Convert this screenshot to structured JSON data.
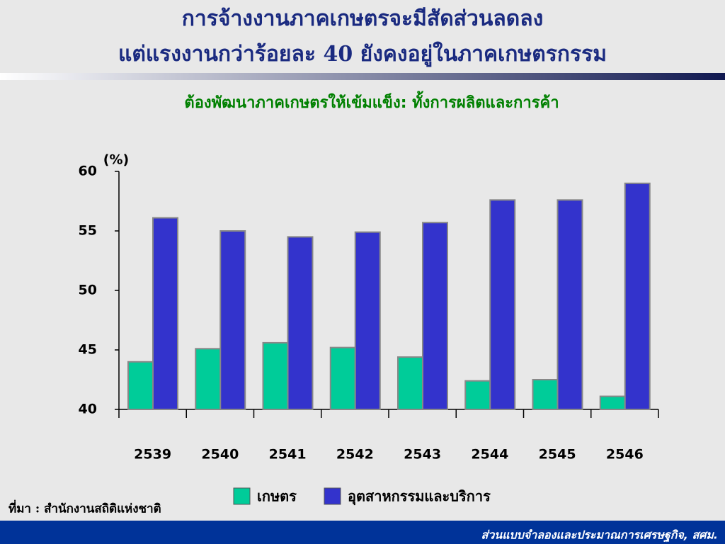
{
  "chart_data": {
    "type": "bar",
    "title": "การจ้างงานภาคเกษตรจะมีสัดส่วนลดลง",
    "title_line2": "แต่แรงงานกว่าร้อยละ 40 ยังคงอยู่ในภาคเกษตรกรรม",
    "subtitle": "ต้องพัฒนาภาคเกษตรให้เข้มแข็ง: ทั้งการผลิตและการค้า",
    "y_unit_label": "(%)",
    "categories": [
      "2539",
      "2540",
      "2541",
      "2542",
      "2543",
      "2544",
      "2545",
      "2546"
    ],
    "series": [
      {
        "name": "เกษตร",
        "color": "#00cc99",
        "values": [
          44.0,
          45.1,
          45.6,
          45.2,
          44.4,
          42.4,
          42.5,
          41.1
        ]
      },
      {
        "name": "อุตสาหกรรมและบริการ",
        "color": "#3333cc",
        "values": [
          56.1,
          55.0,
          54.5,
          54.9,
          55.7,
          57.6,
          57.6,
          59.0
        ]
      }
    ],
    "ylim": [
      40,
      60
    ],
    "yticks": [
      40,
      45,
      50,
      55,
      60
    ],
    "grid": false,
    "source": "ที่มา : สำนักงานสถิติแห่งชาติ",
    "footer": "ส่วนแบบจำลองและประมาณการเศรษฐกิจ, สศม."
  }
}
